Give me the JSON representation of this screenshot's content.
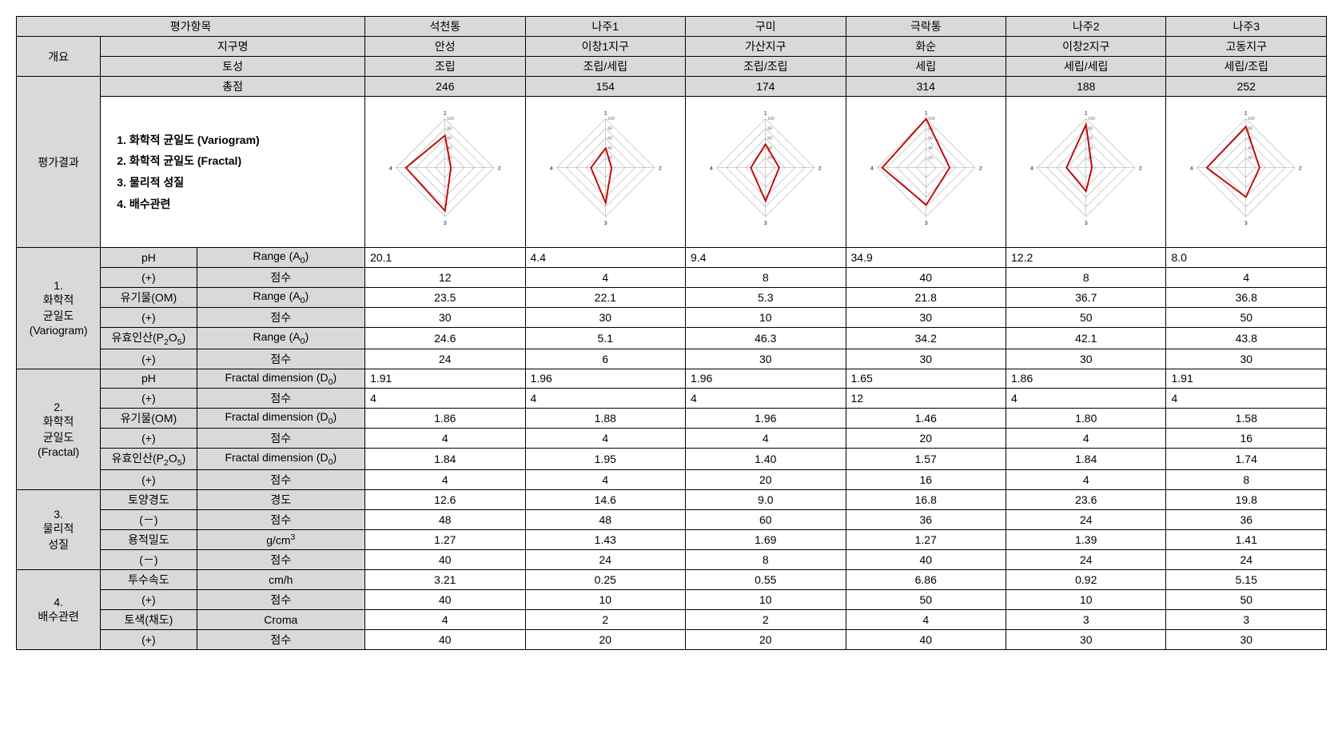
{
  "headers": {
    "eval_item": "평가항목",
    "overview": "개요",
    "district": "지구명",
    "soil": "토성",
    "total": "총점",
    "result": "평가결과",
    "cols": [
      "석천통",
      "나주1",
      "구미",
      "극락통",
      "나주2",
      "나주3"
    ],
    "districts": [
      "안성",
      "이창1지구",
      "가산지구",
      "화순",
      "이창2지구",
      "고동지구"
    ],
    "soils": [
      "조립",
      "조립/세립",
      "조립/조립",
      "세립",
      "세립/세립",
      "세립/조립"
    ],
    "totals": [
      "246",
      "154",
      "174",
      "314",
      "188",
      "252"
    ]
  },
  "legend": {
    "l1": "1. 화학적 균일도 (Variogram)",
    "l2": "2. 화학적 균일도 (Fractal)",
    "l3": "3. 물리적 성질",
    "l4": "4. 배수관련"
  },
  "radar": {
    "axis_labels": [
      "1",
      "2",
      "3",
      "4"
    ],
    "tick_max": 100,
    "ticks": [
      20,
      40,
      60,
      80,
      100
    ],
    "grid_color": "#a0a0a0",
    "line_color": "#c00000",
    "line_width": 2.2,
    "series": [
      [
        66,
        12,
        88,
        80
      ],
      [
        40,
        12,
        72,
        30
      ],
      [
        48,
        28,
        68,
        30
      ],
      [
        100,
        48,
        76,
        90
      ],
      [
        88,
        12,
        48,
        40
      ],
      [
        84,
        28,
        60,
        80
      ]
    ]
  },
  "sections": [
    {
      "title_lines": [
        "1.",
        "화학적",
        "균일도",
        "(Variogram)"
      ],
      "rows": [
        {
          "sub1": "pH",
          "sub2": "Range (A",
          "subSub": "0",
          "subEnd": ")",
          "vals": [
            "20.1",
            "4.4",
            "9.4",
            "34.9",
            "12.2",
            "8.0"
          ],
          "align": "left"
        },
        {
          "sub1": "(+)",
          "sub2": "점수",
          "vals": [
            "12",
            "4",
            "8",
            "40",
            "8",
            "4"
          ],
          "align": "center"
        },
        {
          "sub1": "유기물(OM)",
          "sub2": "Range (A",
          "subSub": "0",
          "subEnd": ")",
          "vals": [
            "23.5",
            "22.1",
            "5.3",
            "21.8",
            "36.7",
            "36.8"
          ],
          "align": "center"
        },
        {
          "sub1": "(+)",
          "sub2": "점수",
          "vals": [
            "30",
            "30",
            "10",
            "30",
            "50",
            "50"
          ],
          "align": "center"
        },
        {
          "sub1": "유효인산(P",
          "sub1Sub": "2",
          "sub1Mid": "O",
          "sub1Sub2": "5",
          "sub1End": ")",
          "sub2": "Range (A",
          "subSub": "0",
          "subEnd": ")",
          "vals": [
            "24.6",
            "5.1",
            "46.3",
            "34.2",
            "42.1",
            "43.8"
          ],
          "align": "center"
        },
        {
          "sub1": "(+)",
          "sub2": "점수",
          "vals": [
            "24",
            "6",
            "30",
            "30",
            "30",
            "30"
          ],
          "align": "center"
        }
      ]
    },
    {
      "title_lines": [
        "2.",
        "화학적",
        "균일도",
        "(Fractal)"
      ],
      "rows": [
        {
          "sub1": "pH",
          "sub2": "Fractal dimension (D",
          "subSub": "0",
          "subEnd": ")",
          "vals": [
            "1.91",
            "1.96",
            "1.96",
            "1.65",
            "1.86",
            "1.91"
          ],
          "align": "left"
        },
        {
          "sub1": "(+)",
          "sub2": "점수",
          "vals": [
            "4",
            "4",
            "4",
            "12",
            "4",
            "4"
          ],
          "align": "left"
        },
        {
          "sub1": "유기물(OM)",
          "sub2": "Fractal dimension (D",
          "subSub": "0",
          "subEnd": ")",
          "vals": [
            "1.86",
            "1.88",
            "1.96",
            "1.46",
            "1.80",
            "1.58"
          ],
          "align": "center"
        },
        {
          "sub1": "(+)",
          "sub2": "점수",
          "vals": [
            "4",
            "4",
            "4",
            "20",
            "4",
            "16"
          ],
          "align": "center"
        },
        {
          "sub1": "유효인산(P",
          "sub1Sub": "2",
          "sub1Mid": "O",
          "sub1Sub2": "5",
          "sub1End": ")",
          "sub2": "Fractal dimension (D",
          "subSub": "0",
          "subEnd": ")",
          "vals": [
            "1.84",
            "1.95",
            "1.40",
            "1.57",
            "1.84",
            "1.74"
          ],
          "align": "center"
        },
        {
          "sub1": "(+)",
          "sub2": "점수",
          "vals": [
            "4",
            "4",
            "20",
            "16",
            "4",
            "8"
          ],
          "align": "center"
        }
      ]
    },
    {
      "title_lines": [
        "3.",
        "물리적",
        "성질"
      ],
      "rows": [
        {
          "sub1": "토양경도",
          "sub2": "경도",
          "vals": [
            "12.6",
            "14.6",
            "9.0",
            "16.8",
            "23.6",
            "19.8"
          ],
          "align": "center"
        },
        {
          "sub1": "(－)",
          "sub2": "점수",
          "vals": [
            "48",
            "48",
            "60",
            "36",
            "24",
            "36"
          ],
          "align": "center"
        },
        {
          "sub1": "용적밀도",
          "sub2": "g/cm",
          "subSup": "3",
          "vals": [
            "1.27",
            "1.43",
            "1.69",
            "1.27",
            "1.39",
            "1.41"
          ],
          "align": "center"
        },
        {
          "sub1": "(－)",
          "sub2": "점수",
          "vals": [
            "40",
            "24",
            "8",
            "40",
            "24",
            "24"
          ],
          "align": "center"
        }
      ]
    },
    {
      "title_lines": [
        "4.",
        "배수관련"
      ],
      "rows": [
        {
          "sub1": "투수속도",
          "sub2": "cm/h",
          "vals": [
            "3.21",
            "0.25",
            "0.55",
            "6.86",
            "0.92",
            "5.15"
          ],
          "align": "center"
        },
        {
          "sub1": "(+)",
          "sub2": "점수",
          "vals": [
            "40",
            "10",
            "10",
            "50",
            "10",
            "50"
          ],
          "align": "center"
        },
        {
          "sub1": "토색(채도)",
          "sub2": "Croma",
          "vals": [
            "4",
            "2",
            "2",
            "4",
            "3",
            "3"
          ],
          "align": "center"
        },
        {
          "sub1": "(+)",
          "sub2": "점수",
          "vals": [
            "40",
            "20",
            "20",
            "40",
            "30",
            "30"
          ],
          "align": "center"
        }
      ]
    }
  ]
}
